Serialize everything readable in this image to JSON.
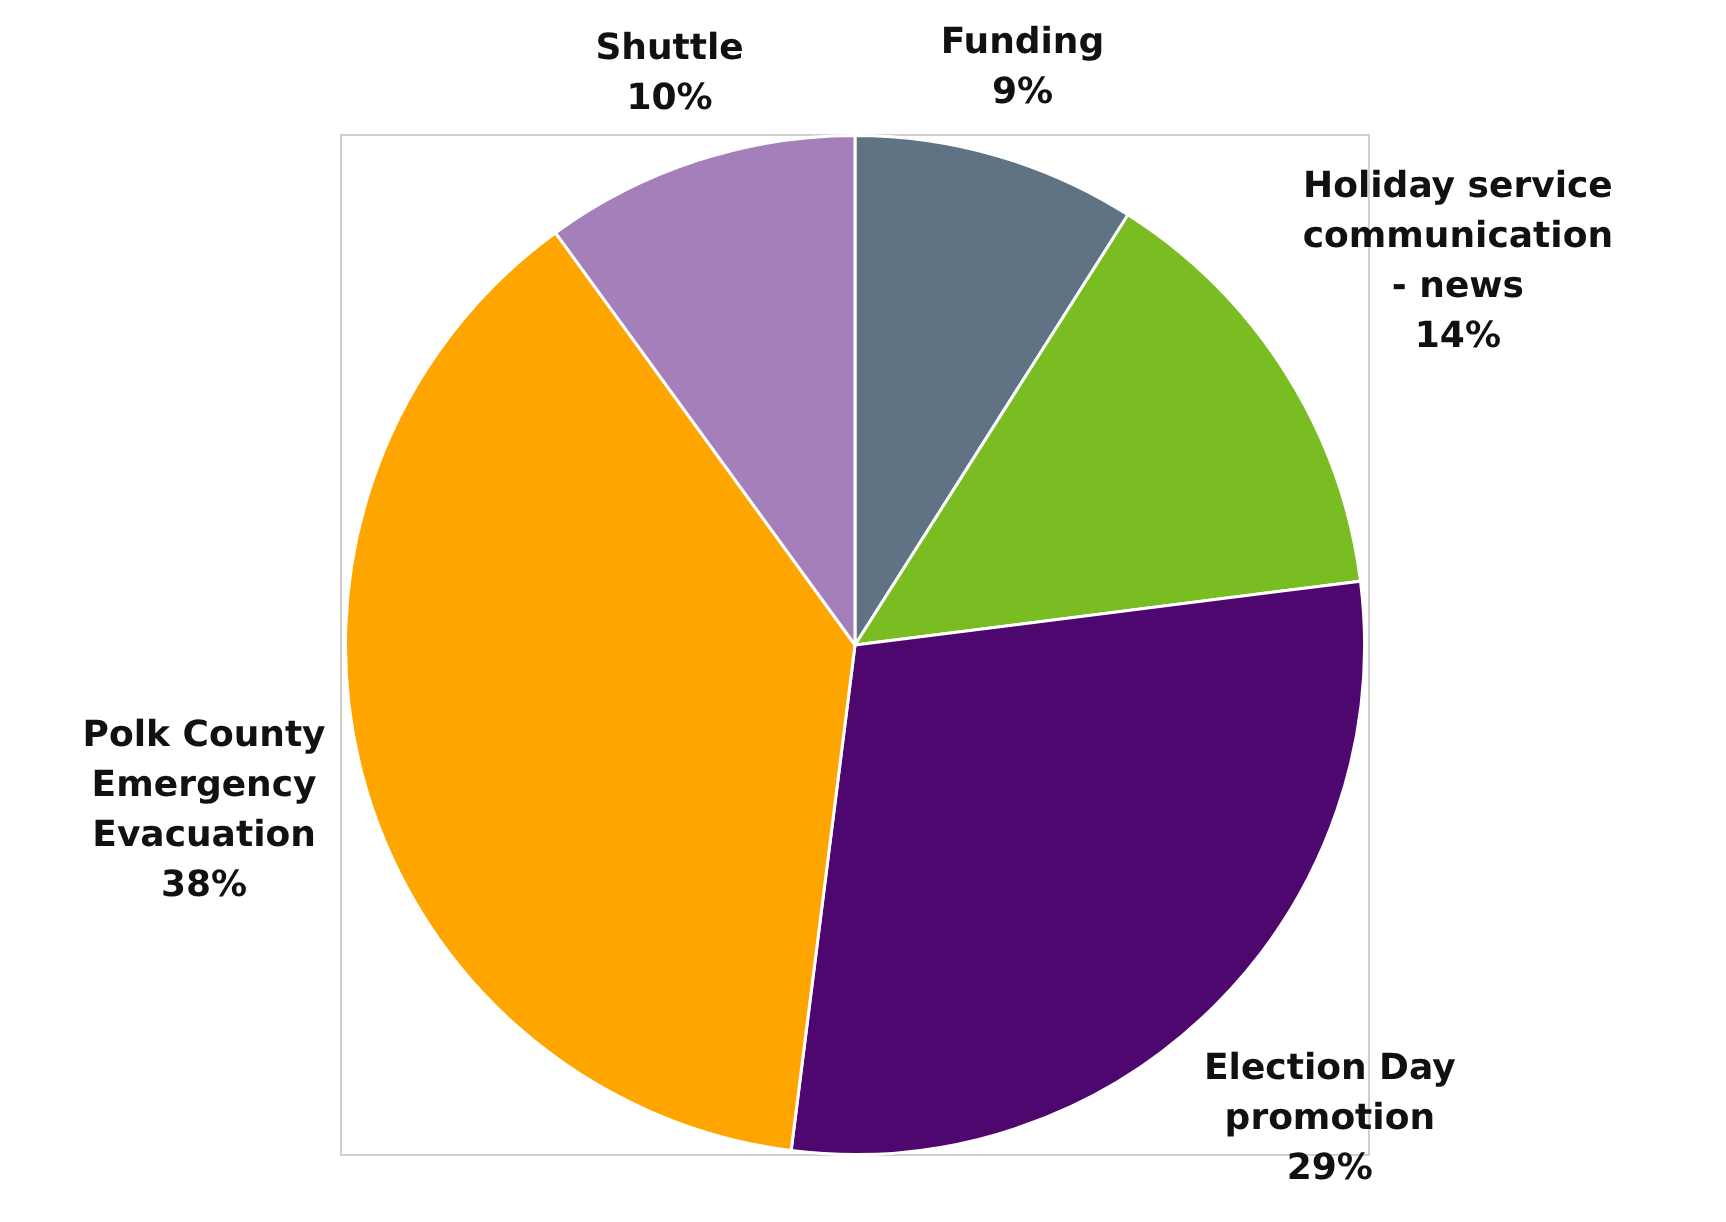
{
  "chart_data": {
    "type": "pie",
    "categories": [
      "Funding",
      "Holiday service communication - news",
      "Election Day promotion",
      "Polk County Emergency Evacuation",
      "Shuttle"
    ],
    "values": [
      9,
      14,
      29,
      38,
      10
    ],
    "value_labels": [
      "9%",
      "14%",
      "29%",
      "38%",
      "10%"
    ],
    "colors": [
      "#607385",
      "#7abd22",
      "#4e076e",
      "#ffa500",
      "#a57fba"
    ]
  }
}
